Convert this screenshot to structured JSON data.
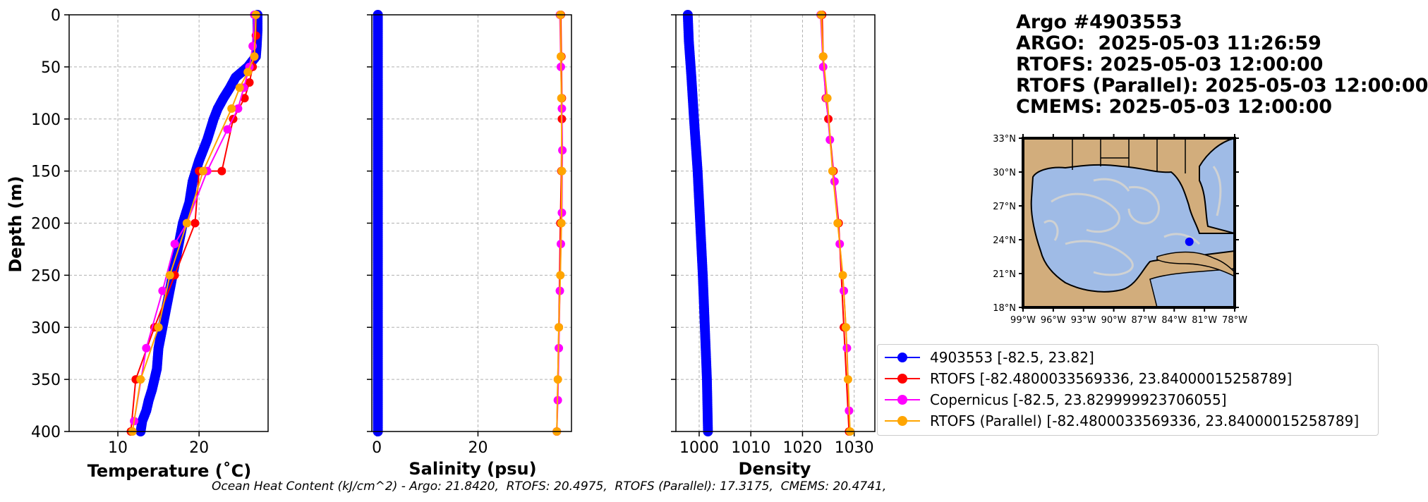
{
  "title_lines": [
    "Argo #4903553",
    "ARGO:  2025-05-03 11:26:59",
    "RTOFS: 2025-05-03 12:00:00",
    "RTOFS (Parallel): 2025-05-03 12:00:00",
    "CMEMS: 2025-05-03 12:00:00"
  ],
  "caption": "Ocean Heat Content (kJ/cm^2) - Argo: 21.8420,  RTOFS: 20.4975,  RTOFS (Parallel): 17.3175,  CMEMS: 20.4741,",
  "legend": [
    {
      "label": "4903553 [-82.5, 23.82]",
      "color": "#0000ff"
    },
    {
      "label": "RTOFS [-82.4800033569336, 23.84000015258789]",
      "color": "#ff0000"
    },
    {
      "label": "Copernicus [-82.5, 23.829999923706055]",
      "color": "#ff00ff"
    },
    {
      "label": "RTOFS (Parallel) [-82.4800033569336, 23.84000015258789]",
      "color": "#ffa500"
    }
  ],
  "map": {
    "lat_labels": [
      "33°N",
      "30°N",
      "27°N",
      "24°N",
      "21°N",
      "18°N"
    ],
    "lon_labels": [
      "99°W",
      "96°W",
      "93°W",
      "90°W",
      "87°W",
      "84°W",
      "81°W",
      "78°W"
    ],
    "colors": {
      "land": "#d2ad7c",
      "ocean": "#9fbbe6",
      "marker": "#0000ff"
    },
    "marker": {
      "lon": -82.5,
      "lat": 23.82
    }
  },
  "chart_data": [
    {
      "type": "line",
      "xlabel": "Temperature (˚C)",
      "ylabel": "Depth (m)",
      "xlim": [
        4,
        28.5
      ],
      "ylim": [
        400,
        0
      ],
      "xticks": [
        "10",
        "20"
      ],
      "xtick_values": [
        10,
        20
      ],
      "yticks": [
        "0",
        "50",
        "100",
        "150",
        "200",
        "250",
        "300",
        "350",
        "400"
      ],
      "ytick_values": [
        0,
        50,
        100,
        150,
        200,
        250,
        300,
        350,
        400
      ],
      "grid": true,
      "series": [
        {
          "name": "4903553",
          "color": "#0000ff",
          "marker_every": 1,
          "x": [
            27.2,
            27.2,
            27.1,
            27.0,
            26.0,
            24.5,
            23.8,
            23.0,
            22.3,
            21.8,
            21.0,
            20.0,
            19.2,
            18.8,
            18.0,
            17.5,
            17.0,
            16.5,
            16.0,
            15.5,
            15.0,
            14.8,
            14.2,
            13.8,
            13.5,
            13.0,
            12.8
          ],
          "y": [
            0,
            15,
            30,
            40,
            50,
            60,
            70,
            80,
            90,
            100,
            120,
            140,
            160,
            180,
            200,
            220,
            240,
            260,
            280,
            300,
            320,
            340,
            360,
            370,
            380,
            390,
            400
          ]
        },
        {
          "name": "RTOFS",
          "color": "#ff0000",
          "x": [
            27.0,
            27.0,
            26.8,
            26.6,
            26.2,
            25.6,
            24.2,
            22.8,
            20.0,
            19.5,
            17.0,
            14.5,
            12.2,
            11.6
          ],
          "y": [
            0,
            20,
            40,
            50,
            65,
            80,
            100,
            150,
            150,
            200,
            250,
            300,
            350,
            400
          ]
        },
        {
          "name": "Copernicus",
          "color": "#ff00ff",
          "x": [
            26.8,
            26.6,
            26.2,
            25.5,
            24.8,
            23.5,
            21.0,
            18.5,
            17.0,
            15.5,
            13.5,
            12.0
          ],
          "y": [
            0,
            30,
            50,
            70,
            90,
            110,
            150,
            200,
            220,
            265,
            320,
            390
          ]
        },
        {
          "name": "RTOFS (Parallel)",
          "color": "#ffa500",
          "x": [
            27.0,
            26.8,
            26.0,
            25.0,
            24.0,
            20.5,
            18.5,
            16.4,
            15.0,
            12.8,
            11.8
          ],
          "y": [
            0,
            40,
            55,
            70,
            90,
            150,
            200,
            250,
            300,
            350,
            400
          ]
        }
      ]
    },
    {
      "type": "line",
      "xlabel": "Salinity (psu)",
      "xlim": [
        -1,
        38.5
      ],
      "ylim": [
        400,
        0
      ],
      "xticks": [
        "0",
        "20"
      ],
      "xtick_values": [
        0,
        20
      ],
      "grid": true,
      "series": [
        {
          "name": "4903553",
          "color": "#0000ff",
          "x": [
            0.2,
            0.2,
            0.2,
            0.2,
            0.2,
            0.2,
            0.2,
            0.2,
            0.2
          ],
          "y": [
            0,
            50,
            100,
            150,
            200,
            250,
            300,
            350,
            400
          ]
        },
        {
          "name": "RTOFS",
          "color": "#ff0000",
          "x": [
            36.4,
            36.5,
            36.6,
            36.6,
            36.5,
            36.3,
            36.0,
            35.6
          ],
          "y": [
            0,
            40,
            80,
            100,
            150,
            200,
            300,
            400
          ]
        },
        {
          "name": "Copernicus",
          "color": "#ff00ff",
          "x": [
            36.2,
            36.4,
            36.6,
            36.7,
            36.6,
            36.4,
            36.2,
            36.0,
            35.8,
            35.6
          ],
          "y": [
            0,
            50,
            90,
            130,
            190,
            220,
            265,
            320,
            370,
            400
          ]
        },
        {
          "name": "RTOFS (Parallel)",
          "color": "#ffa500",
          "x": [
            36.3,
            36.4,
            36.5,
            36.6,
            36.5,
            36.3,
            36.0,
            35.8,
            35.6
          ],
          "y": [
            0,
            40,
            80,
            150,
            200,
            250,
            300,
            350,
            400
          ]
        }
      ]
    },
    {
      "type": "line",
      "xlabel": "Density",
      "xlim": [
        995.5,
        1034
      ],
      "ylim": [
        400,
        0
      ],
      "xticks": [
        "1000",
        "1010",
        "1020",
        "1030"
      ],
      "xtick_values": [
        1000,
        1010,
        1020,
        1030
      ],
      "grid": true,
      "series": [
        {
          "name": "4903553",
          "color": "#0000ff",
          "x": [
            997.8,
            998.0,
            998.5,
            999.0,
            999.7,
            1000.2,
            1000.7,
            1001.1,
            1001.5,
            1001.7
          ],
          "y": [
            0,
            25,
            60,
            100,
            150,
            200,
            250,
            300,
            350,
            400
          ]
        },
        {
          "name": "RTOFS",
          "color": "#ff0000",
          "x": [
            1023.8,
            1024.0,
            1024.5,
            1025.0,
            1026.0,
            1027.0,
            1028.0,
            1029.0
          ],
          "y": [
            0,
            40,
            80,
            100,
            150,
            200,
            300,
            400
          ]
        },
        {
          "name": "Copernicus",
          "color": "#ff00ff",
          "x": [
            1023.5,
            1024.0,
            1024.6,
            1025.3,
            1026.2,
            1027.2,
            1028.0,
            1028.6,
            1029.0
          ],
          "y": [
            0,
            50,
            80,
            120,
            160,
            220,
            265,
            320,
            380
          ]
        },
        {
          "name": "RTOFS (Parallel)",
          "color": "#ffa500",
          "x": [
            1023.6,
            1024.0,
            1024.8,
            1025.8,
            1026.8,
            1027.8,
            1028.4,
            1028.8,
            1029.2
          ],
          "y": [
            0,
            40,
            80,
            150,
            200,
            250,
            300,
            350,
            400
          ]
        }
      ]
    }
  ]
}
